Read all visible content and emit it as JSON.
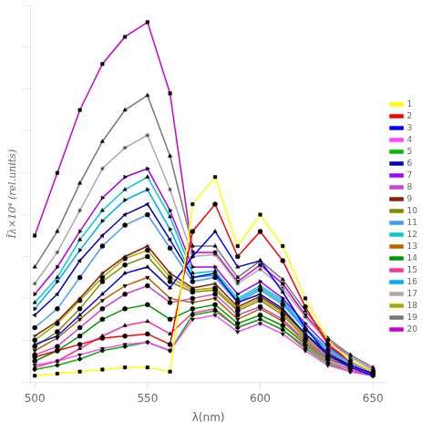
{
  "chart_data": {
    "type": "line",
    "xlabel": "λ(nm)",
    "ylabel": "Īλ×10⁴ (rel.units)",
    "x": [
      500,
      510,
      520,
      530,
      540,
      550,
      560,
      570,
      580,
      590,
      600,
      610,
      620,
      630,
      640,
      650
    ],
    "xlim": [
      498,
      656
    ],
    "xticks": [
      500,
      550,
      600,
      650
    ],
    "ylim": [
      0,
      18
    ],
    "yticks": [
      0,
      2,
      4,
      6,
      8,
      10,
      12,
      14,
      16,
      18
    ],
    "tick_labels": "x",
    "grid": false,
    "legend": "right",
    "series": [
      {
        "name": "1",
        "color": "#ffff00",
        "marker": "square",
        "values": [
          0.3,
          0.4,
          0.5,
          0.6,
          0.7,
          0.7,
          0.5,
          8.5,
          9.8,
          6.5,
          8.0,
          6.5,
          4.0,
          2.0,
          1.0,
          0.5
        ]
      },
      {
        "name": "2",
        "color": "#ff0000",
        "marker": "circle",
        "values": [
          1.2,
          1.5,
          1.8,
          2.1,
          2.2,
          2.3,
          1.8,
          7.2,
          8.5,
          6.0,
          7.2,
          5.8,
          3.6,
          1.8,
          1.0,
          0.5
        ]
      },
      {
        "name": "3",
        "color": "#0000ff",
        "marker": "triangle-up",
        "values": [
          1.8,
          2.2,
          3.2,
          4.2,
          5.2,
          5.5,
          4.5,
          6.0,
          7.2,
          5.5,
          5.8,
          4.3,
          2.6,
          1.3,
          0.7,
          0.3
        ]
      },
      {
        "name": "4",
        "color": "#ff44ff",
        "marker": "triangle-down",
        "values": [
          0.8,
          1.0,
          1.3,
          1.6,
          1.8,
          1.9,
          1.5,
          3.0,
          3.2,
          2.4,
          2.8,
          2.3,
          1.5,
          0.8,
          0.5,
          0.3
        ]
      },
      {
        "name": "5",
        "color": "#00bb00",
        "marker": "diamond",
        "values": [
          0.6,
          0.8,
          1.1,
          1.5,
          1.7,
          1.9,
          1.5,
          3.2,
          3.4,
          2.6,
          3.0,
          2.5,
          1.6,
          0.9,
          0.5,
          0.3
        ]
      },
      {
        "name": "6",
        "color": "#0000cc",
        "marker": "triangle-left",
        "values": [
          3.2,
          4.2,
          5.8,
          7.0,
          8.0,
          8.5,
          6.8,
          5.0,
          5.2,
          3.8,
          4.2,
          3.5,
          2.3,
          1.3,
          0.8,
          0.4
        ]
      },
      {
        "name": "7",
        "color": "#aa00ff",
        "marker": "triangle-right",
        "values": [
          4.2,
          5.5,
          7.2,
          8.8,
          9.8,
          10.2,
          8.2,
          5.5,
          5.5,
          4.2,
          4.8,
          4.0,
          2.8,
          1.7,
          1.0,
          0.5
        ]
      },
      {
        "name": "8",
        "color": "#cc44cc",
        "marker": "circle",
        "values": [
          1.3,
          1.7,
          2.6,
          3.5,
          4.2,
          4.6,
          3.8,
          4.0,
          4.2,
          3.2,
          3.6,
          3.0,
          2.0,
          1.2,
          0.7,
          0.4
        ]
      },
      {
        "name": "9",
        "color": "#882200",
        "marker": "star",
        "values": [
          2.2,
          2.9,
          4.0,
          5.2,
          6.0,
          6.5,
          5.2,
          4.5,
          4.7,
          3.6,
          4.1,
          3.4,
          2.3,
          1.4,
          0.8,
          0.4
        ]
      },
      {
        "name": "10",
        "color": "#888800",
        "marker": "circle",
        "values": [
          1.7,
          2.4,
          3.5,
          4.8,
          5.6,
          6.0,
          4.8,
          4.3,
          4.4,
          3.4,
          3.9,
          3.2,
          2.1,
          1.3,
          0.7,
          0.4
        ]
      },
      {
        "name": "11",
        "color": "#4499ff",
        "marker": "circle",
        "values": [
          2.6,
          3.5,
          5.0,
          6.5,
          7.5,
          8.0,
          6.4,
          4.8,
          5.0,
          3.8,
          4.4,
          3.7,
          2.5,
          1.5,
          0.9,
          0.5
        ]
      },
      {
        "name": "12",
        "color": "#00cccc",
        "marker": "triangle-up",
        "values": [
          3.8,
          5.0,
          6.8,
          8.2,
          9.2,
          9.8,
          7.9,
          5.2,
          5.3,
          4.0,
          4.6,
          3.9,
          2.6,
          1.6,
          1.0,
          0.5
        ]
      },
      {
        "name": "13",
        "color": "#bb6600",
        "marker": "triangle-down",
        "values": [
          1.5,
          2.1,
          3.0,
          3.9,
          4.6,
          5.0,
          4.0,
          3.8,
          4.0,
          3.0,
          3.5,
          2.9,
          1.9,
          1.2,
          0.7,
          0.4
        ]
      },
      {
        "name": "14",
        "color": "#009900",
        "marker": "circle",
        "values": [
          1.0,
          1.5,
          2.2,
          3.0,
          3.5,
          3.7,
          3.0,
          3.5,
          3.7,
          2.8,
          3.2,
          2.7,
          1.8,
          1.1,
          0.7,
          0.4
        ]
      },
      {
        "name": "15",
        "color": "#ff3399",
        "marker": "triangle-up",
        "values": [
          0.7,
          1.0,
          1.6,
          2.2,
          2.7,
          2.9,
          2.3,
          3.3,
          3.5,
          2.6,
          3.0,
          2.5,
          1.7,
          1.0,
          0.6,
          0.3
        ]
      },
      {
        "name": "16",
        "color": "#00aaff",
        "marker": "triangle-right",
        "values": [
          3.5,
          4.8,
          6.3,
          7.7,
          8.7,
          9.2,
          7.3,
          5.0,
          5.1,
          3.9,
          4.5,
          3.8,
          2.5,
          1.6,
          0.9,
          0.5
        ]
      },
      {
        "name": "17",
        "color": "#aaaaaa",
        "marker": "star",
        "values": [
          4.7,
          6.2,
          8.2,
          10.2,
          11.2,
          11.8,
          9.2,
          6.0,
          6.1,
          4.7,
          5.4,
          4.5,
          3.1,
          1.9,
          1.2,
          0.6
        ]
      },
      {
        "name": "18",
        "color": "#aaaa00",
        "marker": "circle",
        "values": [
          2.0,
          2.8,
          3.9,
          5.0,
          5.9,
          6.3,
          5.0,
          4.4,
          4.5,
          3.5,
          4.0,
          3.3,
          2.2,
          1.4,
          0.8,
          0.4
        ]
      },
      {
        "name": "19",
        "color": "#777777",
        "marker": "triangle-up",
        "values": [
          5.5,
          7.2,
          9.5,
          11.5,
          13.0,
          13.7,
          10.8,
          6.5,
          6.5,
          5.0,
          5.8,
          4.9,
          3.4,
          2.1,
          1.3,
          0.7
        ]
      },
      {
        "name": "20",
        "color": "#cc00cc",
        "marker": "square",
        "values": [
          7.0,
          10.0,
          13.0,
          15.2,
          16.5,
          17.2,
          13.8,
          6.2,
          6.2,
          4.8,
          5.6,
          4.7,
          3.2,
          2.0,
          1.2,
          0.6
        ]
      }
    ]
  }
}
